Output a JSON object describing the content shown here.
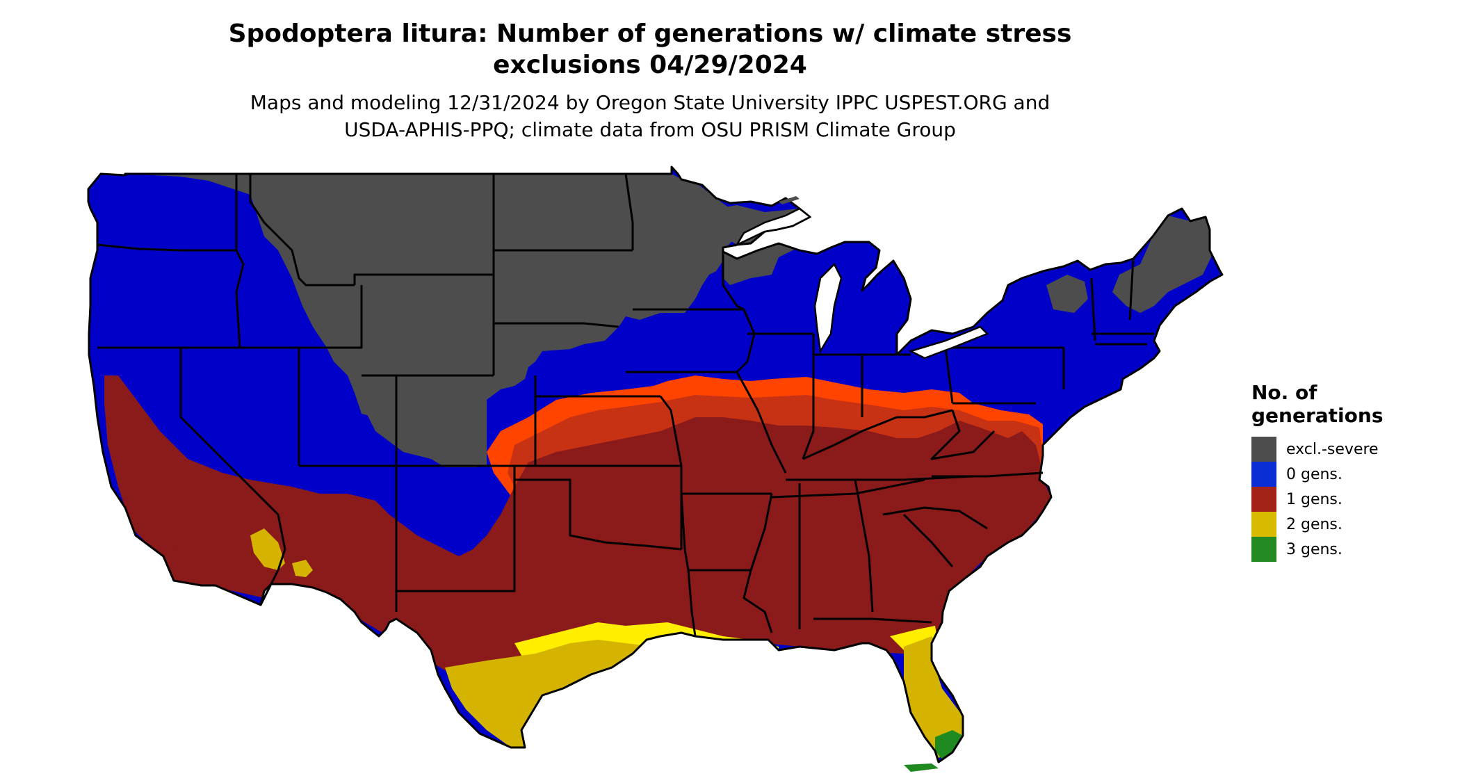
{
  "title": {
    "line1": "Spodoptera litura: Number of generations w/ climate stress",
    "line2": "exclusions 04/29/2024"
  },
  "subtitle": {
    "line1": "Maps and modeling 12/31/2024 by Oregon State University IPPC USPEST.ORG and",
    "line2": "USDA-APHIS-PPQ; climate data from OSU PRISM Climate Group"
  },
  "legend": {
    "title_line1": "No. of",
    "title_line2": "generations",
    "items": [
      {
        "label": "excl.-severe",
        "color": "#4d4d4d"
      },
      {
        "label": "0 gens.",
        "color": "#0a2ed4"
      },
      {
        "label": "1 gens.",
        "color": "#a32318"
      },
      {
        "label": "2 gens.",
        "color": "#d8bb00"
      },
      {
        "label": "3 gens.",
        "color": "#238a22"
      }
    ]
  },
  "map_colors": {
    "excl_severe": "#4d4d4d",
    "zero_gens": "#0000c8",
    "one_gens": "#8b1a1a",
    "one_gens_warm": "#c83214",
    "one_gens_edge": "#ff4400",
    "two_gens": "#d4b400",
    "two_gens_edge": "#ffee00",
    "three_gens": "#1f8a1f",
    "state_border": "#000000"
  }
}
